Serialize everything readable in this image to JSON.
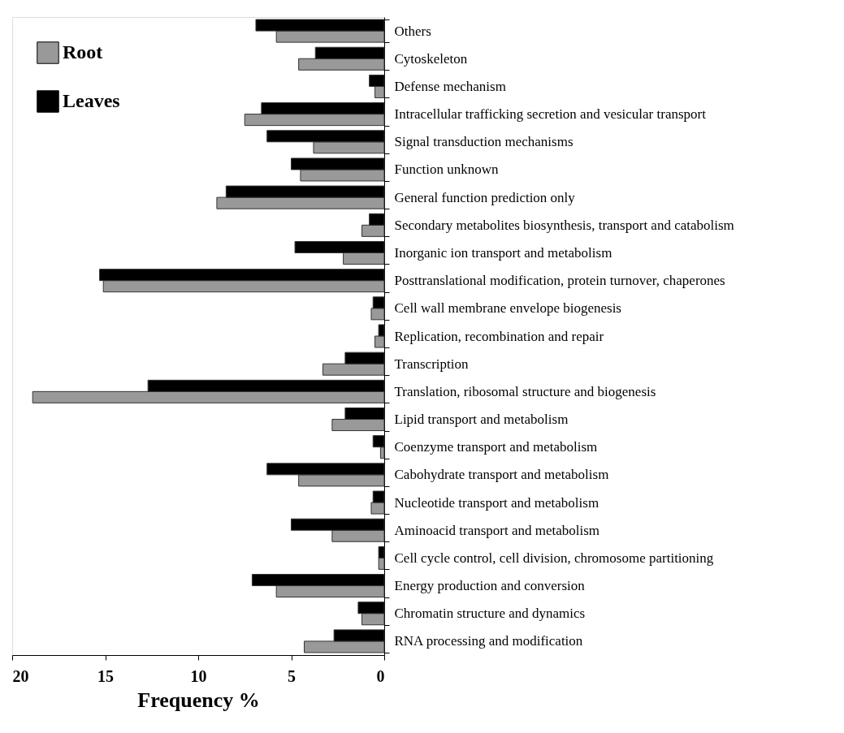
{
  "chart_data": {
    "type": "bar",
    "orientation": "horizontal",
    "xlabel": "Frequency %",
    "categories": [
      "Others",
      "Cytoskeleton",
      "Defense mechanism",
      "Intracellular trafficking secretion and vesicular transport",
      "Signal transduction mechanisms",
      "Function unknown",
      "General function prediction only",
      "Secondary metabolites biosynthesis, transport and catabolism",
      "Inorganic ion transport and metabolism",
      "Posttranslational modification, protein turnover, chaperones",
      "Cell wall membrane envelope biogenesis",
      "Replication, recombination and repair",
      "Transcription",
      "Translation, ribosomal structure and biogenesis",
      "Lipid transport and metabolism",
      "Coenzyme transport and metabolism",
      "Cabohydrate transport and metabolism",
      "Nucleotide transport and metabolism",
      "Aminoacid transport and metabolism",
      "Cell cycle control, cell division, chromosome partitioning",
      "Energy production and conversion",
      "Chromatin structure and dynamics",
      "RNA processing and modification"
    ],
    "series": [
      {
        "name": "Root",
        "color": "#999999",
        "values": [
          5.8,
          4.6,
          0.5,
          7.5,
          3.8,
          4.5,
          9.0,
          1.2,
          2.2,
          15.1,
          0.7,
          0.5,
          3.3,
          18.9,
          2.8,
          0.2,
          4.6,
          0.7,
          2.8,
          0.3,
          5.8,
          1.2,
          4.3
        ]
      },
      {
        "name": "Leaves",
        "color": "#000000",
        "values": [
          6.9,
          3.7,
          0.8,
          6.6,
          6.3,
          5.0,
          8.5,
          0.8,
          4.8,
          15.3,
          0.6,
          0.3,
          2.1,
          12.7,
          2.1,
          0.6,
          6.3,
          0.6,
          5.0,
          0.3,
          7.1,
          1.4,
          2.7
        ]
      }
    ],
    "xlim": [
      20,
      0
    ],
    "xticks": [
      20,
      15,
      10,
      5,
      0
    ],
    "grid": false,
    "legend": "top left"
  }
}
